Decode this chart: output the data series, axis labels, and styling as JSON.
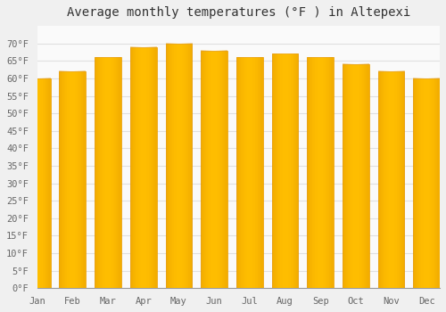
{
  "title": "Average monthly temperatures (°F ) in Altepexi",
  "months": [
    "Jan",
    "Feb",
    "Mar",
    "Apr",
    "May",
    "Jun",
    "Jul",
    "Aug",
    "Sep",
    "Oct",
    "Nov",
    "Dec"
  ],
  "values": [
    60,
    62,
    66,
    69,
    70,
    68,
    66,
    67,
    66,
    64,
    62,
    60
  ],
  "bar_color_main": "#FFBE00",
  "bar_color_light": "#FFD966",
  "bar_color_edge": "#E89A00",
  "background_color": "#F0F0F0",
  "plot_background": "#FAFAFA",
  "grid_color": "#E0E0E0",
  "title_fontsize": 10,
  "tick_fontsize": 7.5,
  "ylim": [
    0,
    75
  ],
  "yticks": [
    0,
    5,
    10,
    15,
    20,
    25,
    30,
    35,
    40,
    45,
    50,
    55,
    60,
    65,
    70
  ],
  "ylabel_format": "°F"
}
